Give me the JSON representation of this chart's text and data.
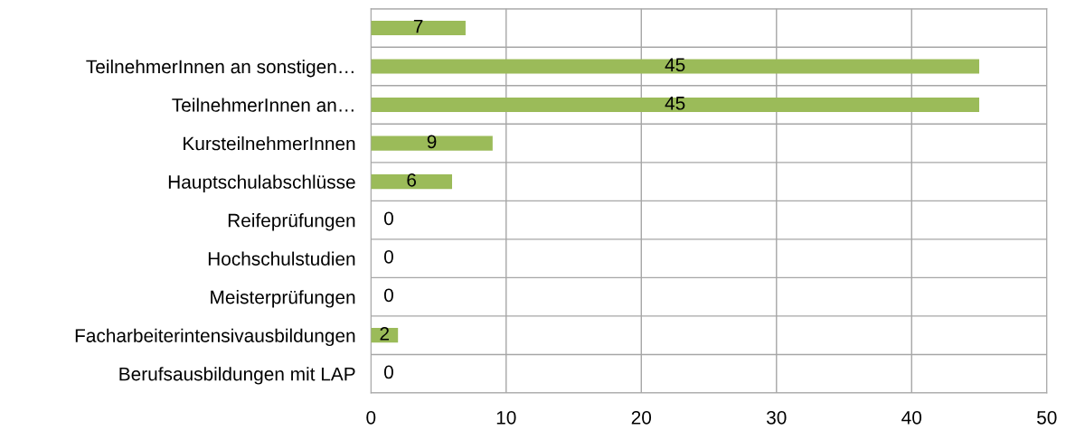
{
  "chart_data": {
    "type": "bar",
    "orientation": "horizontal",
    "categories": [
      null,
      "TeilnehmerInnen an sonstigen…",
      "TeilnehmerInnen an…",
      "KursteilnehmerInnen",
      "Hauptschulabschlüsse",
      "Reifeprüfungen",
      "Hochschulstudien",
      "Meisterprüfungen",
      "Facharbeiterintensivausbildungen",
      "Berufsausbildungen mit LAP"
    ],
    "values": [
      7,
      45,
      45,
      9,
      6,
      0,
      0,
      0,
      2,
      0
    ],
    "color": "#9bbb59",
    "xlim": [
      0,
      50
    ],
    "xticks": [
      0,
      10,
      20,
      30,
      40,
      50
    ],
    "grid": true,
    "data_labels": true
  }
}
